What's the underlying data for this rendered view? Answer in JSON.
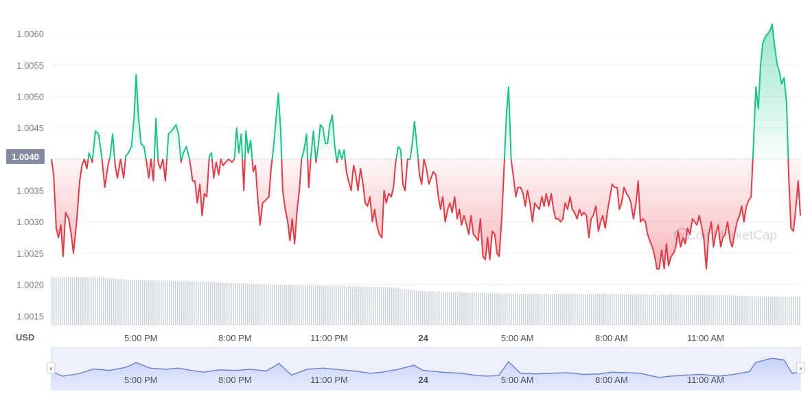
{
  "chart_data": {
    "type": "line",
    "currency": "USD",
    "baseline": 1.004,
    "baseline_label": "1.0040",
    "ylim": [
      1.00135,
      1.00645
    ],
    "y_ticks": [
      "1.0015",
      "1.0020",
      "1.0025",
      "1.0030",
      "1.0035",
      "1.0040",
      "1.0045",
      "1.0050",
      "1.0055",
      "1.0060"
    ],
    "x_ticks": [
      "5:00 PM",
      "8:00 PM",
      "11:00 PM",
      "24",
      "5:00 AM",
      "8:00 AM",
      "11:00 AM"
    ],
    "bold_ticks": [
      "24"
    ],
    "x_hours": [
      0,
      3,
      6,
      9,
      12,
      15,
      18
    ],
    "x_range_hours": [
      -2.85,
      21.02
    ],
    "price_points": [
      [
        -2.85,
        1.004
      ],
      [
        -2.78,
        1.00375
      ],
      [
        -2.7,
        1.0029
      ],
      [
        -2.63,
        1.00275
      ],
      [
        -2.55,
        1.00295
      ],
      [
        -2.48,
        1.00245
      ],
      [
        -2.4,
        1.00315
      ],
      [
        -2.3,
        1.00305
      ],
      [
        -2.22,
        1.0028
      ],
      [
        -2.15,
        1.0025
      ],
      [
        -2.05,
        1.003
      ],
      [
        -1.95,
        1.00365
      ],
      [
        -1.88,
        1.0039
      ],
      [
        -1.8,
        1.004
      ],
      [
        -1.72,
        1.00385
      ],
      [
        -1.65,
        1.0041
      ],
      [
        -1.55,
        1.00395
      ],
      [
        -1.45,
        1.00445
      ],
      [
        -1.35,
        1.0044
      ],
      [
        -1.25,
        1.00405
      ],
      [
        -1.15,
        1.00355
      ],
      [
        -1.05,
        1.0039
      ],
      [
        -0.98,
        1.00405
      ],
      [
        -0.9,
        1.0044
      ],
      [
        -0.82,
        1.0039
      ],
      [
        -0.75,
        1.0037
      ],
      [
        -0.65,
        1.004
      ],
      [
        -0.55,
        1.0037
      ],
      [
        -0.48,
        1.00405
      ],
      [
        -0.4,
        1.0041
      ],
      [
        -0.3,
        1.0042
      ],
      [
        -0.22,
        1.00465
      ],
      [
        -0.15,
        1.00535
      ],
      [
        -0.08,
        1.0047
      ],
      [
        0.0,
        1.00425
      ],
      [
        0.1,
        1.0042
      ],
      [
        0.18,
        1.00395
      ],
      [
        0.25,
        1.0037
      ],
      [
        0.32,
        1.004
      ],
      [
        0.4,
        1.00365
      ],
      [
        0.48,
        1.00465
      ],
      [
        0.55,
        1.00395
      ],
      [
        0.62,
        1.00385
      ],
      [
        0.7,
        1.004
      ],
      [
        0.78,
        1.00365
      ],
      [
        0.88,
        1.0044
      ],
      [
        0.98,
        1.00445
      ],
      [
        1.05,
        1.0045
      ],
      [
        1.12,
        1.00455
      ],
      [
        1.2,
        1.0044
      ],
      [
        1.28,
        1.00395
      ],
      [
        1.35,
        1.0041
      ],
      [
        1.45,
        1.0042
      ],
      [
        1.55,
        1.004
      ],
      [
        1.65,
        1.00365
      ],
      [
        1.72,
        1.00365
      ],
      [
        1.8,
        1.0033
      ],
      [
        1.88,
        1.0036
      ],
      [
        1.95,
        1.0031
      ],
      [
        2.02,
        1.00345
      ],
      [
        2.1,
        1.0034
      ],
      [
        2.18,
        1.00405
      ],
      [
        2.25,
        1.0041
      ],
      [
        2.32,
        1.0037
      ],
      [
        2.4,
        1.00395
      ],
      [
        2.48,
        1.00375
      ],
      [
        2.55,
        1.004
      ],
      [
        2.62,
        1.0039
      ],
      [
        2.7,
        1.00395
      ],
      [
        2.8,
        1.004
      ],
      [
        2.9,
        1.00395
      ],
      [
        2.98,
        1.004
      ],
      [
        3.05,
        1.0045
      ],
      [
        3.12,
        1.0041
      ],
      [
        3.2,
        1.0044
      ],
      [
        3.28,
        1.0035
      ],
      [
        3.35,
        1.00445
      ],
      [
        3.42,
        1.0041
      ],
      [
        3.5,
        1.0043
      ],
      [
        3.58,
        1.0038
      ],
      [
        3.65,
        1.0039
      ],
      [
        3.72,
        1.0034
      ],
      [
        3.8,
        1.00295
      ],
      [
        3.88,
        1.0033
      ],
      [
        3.98,
        1.00335
      ],
      [
        4.08,
        1.0034
      ],
      [
        4.15,
        1.00385
      ],
      [
        4.22,
        1.00415
      ],
      [
        4.3,
        1.0046
      ],
      [
        4.38,
        1.00505
      ],
      [
        4.45,
        1.0045
      ],
      [
        4.52,
        1.0035
      ],
      [
        4.6,
        1.0032
      ],
      [
        4.68,
        1.003
      ],
      [
        4.75,
        1.0027
      ],
      [
        4.82,
        1.00305
      ],
      [
        4.9,
        1.00265
      ],
      [
        4.98,
        1.0032
      ],
      [
        5.05,
        1.0035
      ],
      [
        5.12,
        1.004
      ],
      [
        5.2,
        1.00415
      ],
      [
        5.28,
        1.0044
      ],
      [
        5.35,
        1.00355
      ],
      [
        5.42,
        1.00405
      ],
      [
        5.5,
        1.00445
      ],
      [
        5.58,
        1.00395
      ],
      [
        5.65,
        1.0042
      ],
      [
        5.72,
        1.00455
      ],
      [
        5.8,
        1.0045
      ],
      [
        5.88,
        1.00425
      ],
      [
        5.95,
        1.00425
      ],
      [
        6.02,
        1.00455
      ],
      [
        6.1,
        1.0047
      ],
      [
        6.18,
        1.0042
      ],
      [
        6.25,
        1.00395
      ],
      [
        6.32,
        1.00415
      ],
      [
        6.4,
        1.004
      ],
      [
        6.48,
        1.00415
      ],
      [
        6.55,
        1.0038
      ],
      [
        6.62,
        1.00365
      ],
      [
        6.7,
        1.0035
      ],
      [
        6.78,
        1.0039
      ],
      [
        6.85,
        1.00375
      ],
      [
        6.92,
        1.0035
      ],
      [
        7.0,
        1.00385
      ],
      [
        7.08,
        1.0036
      ],
      [
        7.15,
        1.0033
      ],
      [
        7.22,
        1.00325
      ],
      [
        7.3,
        1.0034
      ],
      [
        7.38,
        1.003
      ],
      [
        7.45,
        1.0032
      ],
      [
        7.52,
        1.00295
      ],
      [
        7.6,
        1.0028
      ],
      [
        7.68,
        1.00275
      ],
      [
        7.75,
        1.0035
      ],
      [
        7.82,
        1.0033
      ],
      [
        7.9,
        1.00345
      ],
      [
        7.98,
        1.0034
      ],
      [
        8.05,
        1.00355
      ],
      [
        8.12,
        1.00395
      ],
      [
        8.2,
        1.0042
      ],
      [
        8.28,
        1.00415
      ],
      [
        8.35,
        1.0036
      ],
      [
        8.42,
        1.0035
      ],
      [
        8.5,
        1.004
      ],
      [
        8.58,
        1.004
      ],
      [
        8.65,
        1.00425
      ],
      [
        8.72,
        1.0046
      ],
      [
        8.8,
        1.0042
      ],
      [
        8.88,
        1.00375
      ],
      [
        8.95,
        1.0036
      ],
      [
        9.02,
        1.004
      ],
      [
        9.1,
        1.00385
      ],
      [
        9.18,
        1.0036
      ],
      [
        9.25,
        1.0037
      ],
      [
        9.32,
        1.0038
      ],
      [
        9.4,
        1.00375
      ],
      [
        9.48,
        1.0034
      ],
      [
        9.55,
        1.0032
      ],
      [
        9.62,
        1.0034
      ],
      [
        9.7,
        1.003
      ],
      [
        9.78,
        1.0032
      ],
      [
        9.85,
        1.0033
      ],
      [
        9.92,
        1.00315
      ],
      [
        10.0,
        1.0034
      ],
      [
        10.08,
        1.00305
      ],
      [
        10.15,
        1.0032
      ],
      [
        10.22,
        1.00295
      ],
      [
        10.3,
        1.0031
      ],
      [
        10.38,
        1.00295
      ],
      [
        10.45,
        1.0028
      ],
      [
        10.52,
        1.0031
      ],
      [
        10.6,
        1.0028
      ],
      [
        10.68,
        1.00275
      ],
      [
        10.75,
        1.0027
      ],
      [
        10.82,
        1.00305
      ],
      [
        10.9,
        1.00245
      ],
      [
        10.98,
        1.0024
      ],
      [
        11.05,
        1.00275
      ],
      [
        11.12,
        1.0024
      ],
      [
        11.2,
        1.00285
      ],
      [
        11.28,
        1.0028
      ],
      [
        11.35,
        1.0025
      ],
      [
        11.42,
        1.00245
      ],
      [
        11.5,
        1.00305
      ],
      [
        11.58,
        1.0039
      ],
      [
        11.65,
        1.0047
      ],
      [
        11.72,
        1.00515
      ],
      [
        11.8,
        1.004
      ],
      [
        11.88,
        1.0037
      ],
      [
        11.95,
        1.0034
      ],
      [
        12.02,
        1.00355
      ],
      [
        12.1,
        1.00355
      ],
      [
        12.18,
        1.00345
      ],
      [
        12.25,
        1.00325
      ],
      [
        12.32,
        1.0035
      ],
      [
        12.4,
        1.0033
      ],
      [
        12.48,
        1.003
      ],
      [
        12.55,
        1.0033
      ],
      [
        12.62,
        1.00325
      ],
      [
        12.7,
        1.0032
      ],
      [
        12.78,
        1.0034
      ],
      [
        12.85,
        1.00325
      ],
      [
        12.92,
        1.00345
      ],
      [
        13.0,
        1.00325
      ],
      [
        13.08,
        1.00345
      ],
      [
        13.15,
        1.0032
      ],
      [
        13.22,
        1.00305
      ],
      [
        13.3,
        1.00305
      ],
      [
        13.38,
        1.003
      ],
      [
        13.45,
        1.00305
      ],
      [
        13.52,
        1.0033
      ],
      [
        13.6,
        1.0032
      ],
      [
        13.68,
        1.0034
      ],
      [
        13.75,
        1.0032
      ],
      [
        13.82,
        1.00315
      ],
      [
        13.9,
        1.00305
      ],
      [
        13.98,
        1.0032
      ],
      [
        14.05,
        1.0031
      ],
      [
        14.12,
        1.00315
      ],
      [
        14.2,
        1.0031
      ],
      [
        14.28,
        1.00275
      ],
      [
        14.35,
        1.00305
      ],
      [
        14.42,
        1.0031
      ],
      [
        14.5,
        1.00325
      ],
      [
        14.58,
        1.00285
      ],
      [
        14.65,
        1.003
      ],
      [
        14.72,
        1.0031
      ],
      [
        14.8,
        1.0029
      ],
      [
        14.88,
        1.0032
      ],
      [
        14.95,
        1.0034
      ],
      [
        15.02,
        1.0036
      ],
      [
        15.1,
        1.00355
      ],
      [
        15.18,
        1.00355
      ],
      [
        15.25,
        1.0032
      ],
      [
        15.32,
        1.0033
      ],
      [
        15.4,
        1.00355
      ],
      [
        15.48,
        1.00345
      ],
      [
        15.55,
        1.0034
      ],
      [
        15.62,
        1.0033
      ],
      [
        15.7,
        1.00305
      ],
      [
        15.78,
        1.0033
      ],
      [
        15.85,
        1.00365
      ],
      [
        15.92,
        1.003
      ],
      [
        16.0,
        1.00305
      ],
      [
        16.08,
        1.003
      ],
      [
        16.15,
        1.0028
      ],
      [
        16.22,
        1.0027
      ],
      [
        16.3,
        1.0026
      ],
      [
        16.38,
        1.00245
      ],
      [
        16.45,
        1.00225
      ],
      [
        16.52,
        1.00225
      ],
      [
        16.6,
        1.00255
      ],
      [
        16.68,
        1.00225
      ],
      [
        16.75,
        1.00265
      ],
      [
        16.82,
        1.0023
      ],
      [
        16.9,
        1.00245
      ],
      [
        16.98,
        1.0025
      ],
      [
        17.05,
        1.0026
      ],
      [
        17.12,
        1.00285
      ],
      [
        17.2,
        1.0026
      ],
      [
        17.28,
        1.00275
      ],
      [
        17.35,
        1.00265
      ],
      [
        17.42,
        1.0029
      ],
      [
        17.5,
        1.0028
      ],
      [
        17.58,
        1.00305
      ],
      [
        17.65,
        1.003
      ],
      [
        17.72,
        1.00295
      ],
      [
        17.8,
        1.0031
      ],
      [
        17.88,
        1.0029
      ],
      [
        17.95,
        1.0027
      ],
      [
        18.02,
        1.00225
      ],
      [
        18.1,
        1.0028
      ],
      [
        18.18,
        1.003
      ],
      [
        18.25,
        1.0026
      ],
      [
        18.32,
        1.0028
      ],
      [
        18.4,
        1.00295
      ],
      [
        18.48,
        1.0026
      ],
      [
        18.55,
        1.00275
      ],
      [
        18.62,
        1.0028
      ],
      [
        18.7,
        1.003
      ],
      [
        18.78,
        1.0027
      ],
      [
        18.85,
        1.0026
      ],
      [
        18.92,
        1.0028
      ],
      [
        19.0,
        1.003
      ],
      [
        19.08,
        1.0031
      ],
      [
        19.15,
        1.00325
      ],
      [
        19.22,
        1.003
      ],
      [
        19.3,
        1.00325
      ],
      [
        19.38,
        1.00335
      ],
      [
        19.45,
        1.0034
      ],
      [
        19.52,
        1.00415
      ],
      [
        19.6,
        1.00515
      ],
      [
        19.68,
        1.0048
      ],
      [
        19.75,
        1.0055
      ],
      [
        19.82,
        1.00585
      ],
      [
        19.9,
        1.00595
      ],
      [
        19.98,
        1.006
      ],
      [
        20.05,
        1.00605
      ],
      [
        20.12,
        1.00615
      ],
      [
        20.2,
        1.0058
      ],
      [
        20.28,
        1.0055
      ],
      [
        20.35,
        1.0054
      ],
      [
        20.42,
        1.0052
      ],
      [
        20.5,
        1.0053
      ],
      [
        20.58,
        1.0049
      ],
      [
        20.65,
        1.0037
      ],
      [
        20.72,
        1.0029
      ],
      [
        20.8,
        1.00285
      ],
      [
        20.88,
        1.00325
      ],
      [
        20.95,
        1.00365
      ],
      [
        21.02,
        1.0031
      ]
    ],
    "volume_relative": [
      [
        -2.85,
        1.0
      ],
      [
        -1.5,
        1.01
      ],
      [
        -0.5,
        0.95
      ],
      [
        2.0,
        0.91
      ],
      [
        4.0,
        0.85
      ],
      [
        6.0,
        0.82
      ],
      [
        8.0,
        0.79
      ],
      [
        9.1,
        0.7
      ],
      [
        12.0,
        0.66
      ],
      [
        15.0,
        0.65
      ],
      [
        18.0,
        0.63
      ],
      [
        21.02,
        0.59
      ]
    ],
    "navigator_points": [
      [
        -2.85,
        0.55
      ],
      [
        -2.5,
        0.38
      ],
      [
        -2.0,
        0.46
      ],
      [
        -1.5,
        0.63
      ],
      [
        -1.0,
        0.58
      ],
      [
        -0.5,
        0.68
      ],
      [
        -0.15,
        0.85
      ],
      [
        0.3,
        0.66
      ],
      [
        0.8,
        0.62
      ],
      [
        1.2,
        0.66
      ],
      [
        1.6,
        0.58
      ],
      [
        2.0,
        0.52
      ],
      [
        2.5,
        0.6
      ],
      [
        3.0,
        0.58
      ],
      [
        3.5,
        0.62
      ],
      [
        4.0,
        0.56
      ],
      [
        4.4,
        0.82
      ],
      [
        4.8,
        0.42
      ],
      [
        5.3,
        0.62
      ],
      [
        5.8,
        0.66
      ],
      [
        6.2,
        0.62
      ],
      [
        6.8,
        0.56
      ],
      [
        7.3,
        0.48
      ],
      [
        7.7,
        0.52
      ],
      [
        8.2,
        0.62
      ],
      [
        8.7,
        0.76
      ],
      [
        9.0,
        0.58
      ],
      [
        9.6,
        0.52
      ],
      [
        10.2,
        0.48
      ],
      [
        10.6,
        0.42
      ],
      [
        11.0,
        0.38
      ],
      [
        11.4,
        0.4
      ],
      [
        11.72,
        0.88
      ],
      [
        12.1,
        0.48
      ],
      [
        12.6,
        0.46
      ],
      [
        13.1,
        0.48
      ],
      [
        13.6,
        0.5
      ],
      [
        14.1,
        0.44
      ],
      [
        14.6,
        0.46
      ],
      [
        15.0,
        0.52
      ],
      [
        15.5,
        0.5
      ],
      [
        15.9,
        0.48
      ],
      [
        16.5,
        0.34
      ],
      [
        16.9,
        0.38
      ],
      [
        17.4,
        0.42
      ],
      [
        17.9,
        0.44
      ],
      [
        18.4,
        0.38
      ],
      [
        18.9,
        0.44
      ],
      [
        19.4,
        0.54
      ],
      [
        19.6,
        0.86
      ],
      [
        20.1,
        1.0
      ],
      [
        20.5,
        0.94
      ],
      [
        20.75,
        0.48
      ],
      [
        21.02,
        0.52
      ]
    ],
    "colors": {
      "up": "#16c784",
      "down": "#ea3943",
      "grid": "#eef0f4",
      "baseline_dash": "#c4c9d4",
      "volume": "#cfd4de",
      "badge": "#858ca2",
      "nav_line": "#6f84d9",
      "nav_fill": "#cfd8fb",
      "nav_bg": "#eef1fc",
      "nav_border": "#d7def5"
    }
  },
  "watermark": "CoinMarketCap",
  "navigator": {
    "left_handle": "⏸",
    "right_handle": "⏸"
  }
}
